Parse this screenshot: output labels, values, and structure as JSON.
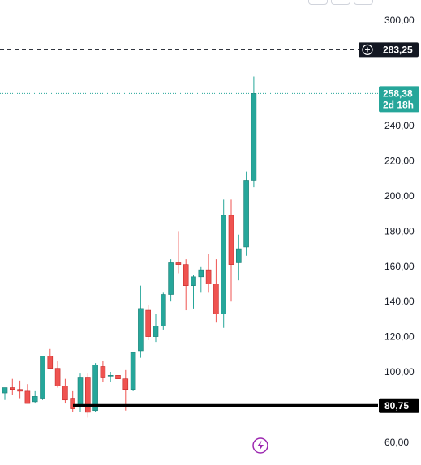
{
  "chart_data": {
    "type": "candlestick",
    "y_axis": {
      "ticks": [
        "300,00",
        "240,00",
        "220,00",
        "200,00",
        "180,00",
        "160,00",
        "140,00",
        "120,00",
        "100,00",
        "60,00"
      ],
      "tick_values": [
        300,
        240,
        220,
        200,
        180,
        160,
        140,
        120,
        100,
        60
      ],
      "ylim": [
        57,
        305
      ]
    },
    "candles": [
      {
        "o": 88,
        "h": 91,
        "l": 84,
        "c": 91
      },
      {
        "o": 91,
        "h": 96,
        "l": 87,
        "c": 90
      },
      {
        "o": 90,
        "h": 95,
        "l": 85,
        "c": 89
      },
      {
        "o": 89,
        "h": 93,
        "l": 82,
        "c": 82
      },
      {
        "o": 83,
        "h": 89,
        "l": 82,
        "c": 86
      },
      {
        "o": 85,
        "h": 108,
        "l": 84,
        "c": 109
      },
      {
        "o": 109,
        "h": 113,
        "l": 103,
        "c": 102
      },
      {
        "o": 102,
        "h": 106,
        "l": 91,
        "c": 92
      },
      {
        "o": 92,
        "h": 96,
        "l": 82,
        "c": 84
      },
      {
        "o": 85,
        "h": 89,
        "l": 77,
        "c": 79
      },
      {
        "o": 80,
        "h": 99,
        "l": 77,
        "c": 97
      },
      {
        "o": 97,
        "h": 99,
        "l": 74,
        "c": 77
      },
      {
        "o": 78,
        "h": 105,
        "l": 77,
        "c": 104
      },
      {
        "o": 103,
        "h": 106,
        "l": 94,
        "c": 97
      },
      {
        "o": 98,
        "h": 100,
        "l": 94,
        "c": 98
      },
      {
        "o": 98,
        "h": 116,
        "l": 94,
        "c": 96
      },
      {
        "o": 96,
        "h": 101,
        "l": 78,
        "c": 90
      },
      {
        "o": 90,
        "h": 110,
        "l": 89,
        "c": 111
      },
      {
        "o": 112,
        "h": 149,
        "l": 108,
        "c": 136
      },
      {
        "o": 135,
        "h": 138,
        "l": 118,
        "c": 120
      },
      {
        "o": 120,
        "h": 133,
        "l": 117,
        "c": 126
      },
      {
        "o": 126,
        "h": 145,
        "l": 124,
        "c": 144
      },
      {
        "o": 144,
        "h": 164,
        "l": 140,
        "c": 162
      },
      {
        "o": 162,
        "h": 180,
        "l": 156,
        "c": 161
      },
      {
        "o": 161,
        "h": 164,
        "l": 135,
        "c": 149
      },
      {
        "o": 149,
        "h": 155,
        "l": 136,
        "c": 154
      },
      {
        "o": 154,
        "h": 160,
        "l": 145,
        "c": 158
      },
      {
        "o": 158,
        "h": 167,
        "l": 145,
        "c": 150
      },
      {
        "o": 150,
        "h": 164,
        "l": 128,
        "c": 133
      },
      {
        "o": 133,
        "h": 198,
        "l": 125,
        "c": 189
      },
      {
        "o": 189,
        "h": 198,
        "l": 140,
        "c": 161
      },
      {
        "o": 162,
        "h": 178,
        "l": 152,
        "c": 170
      },
      {
        "o": 171,
        "h": 214,
        "l": 166,
        "c": 209
      },
      {
        "o": 209,
        "h": 268,
        "l": 205,
        "c": 258.38
      }
    ],
    "horizontal_lines": [
      {
        "label": "283,25",
        "value": 283.25,
        "style": "dashed",
        "color": "#131722"
      },
      {
        "label": "258,38",
        "sublabel": "2d 18h",
        "value": 258.38,
        "style": "dotted",
        "color": "#26a69a"
      },
      {
        "label": "80,75",
        "value": 80.75,
        "style": "solid-thick",
        "color": "#000000"
      }
    ]
  },
  "colors": {
    "up": "#26a69a",
    "down": "#ef5350",
    "axis_text": "#131722",
    "lightning_icon": "#9c27b0"
  }
}
